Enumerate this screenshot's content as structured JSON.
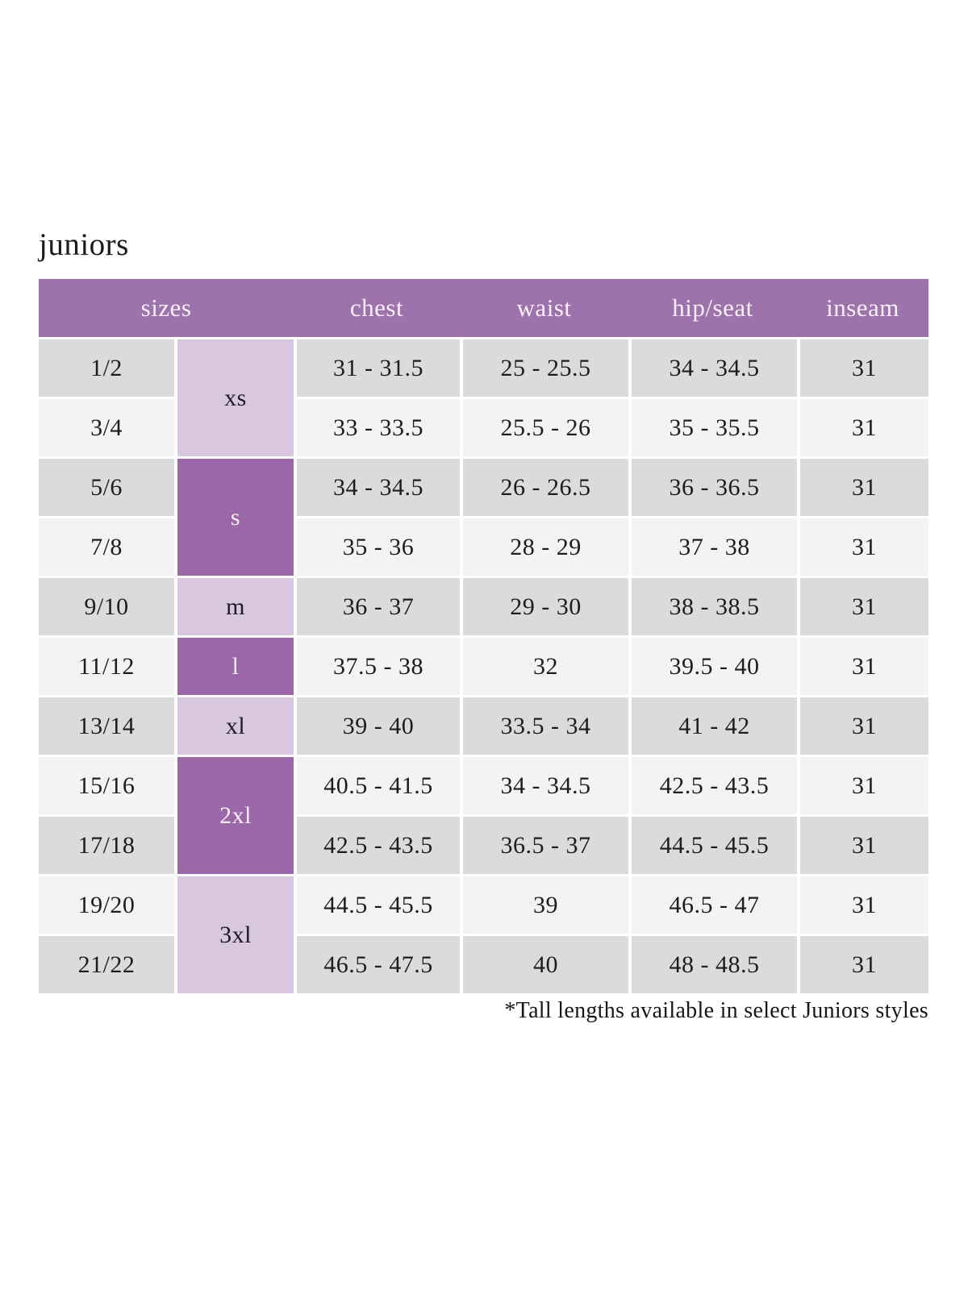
{
  "page": {
    "title": "juniors",
    "footnote": "*Tall lengths available in select Juniors styles"
  },
  "colors": {
    "header_bg": "#9e72ac",
    "dark_size_bg": "#9c67a9",
    "light_size_bg": "#d9c7e0",
    "row_gray": "#dcdbdc",
    "row_light": "#f4f3f4",
    "header_text": "#f7f1f7",
    "body_text": "#1d1d1f"
  },
  "table": {
    "headers": [
      {
        "label": "sizes",
        "colspan": 2
      },
      {
        "label": "chest",
        "colspan": 1
      },
      {
        "label": "waist",
        "colspan": 1
      },
      {
        "label": "hip/seat",
        "colspan": 1
      },
      {
        "label": "inseam",
        "colspan": 1
      }
    ],
    "size_groups": [
      {
        "label": "xs",
        "rows": 2,
        "variant": "light"
      },
      {
        "label": "s",
        "rows": 2,
        "variant": "dark"
      },
      {
        "label": "m",
        "rows": 1,
        "variant": "light"
      },
      {
        "label": "l",
        "rows": 1,
        "variant": "dark"
      },
      {
        "label": "xl",
        "rows": 1,
        "variant": "light"
      },
      {
        "label": "2xl",
        "rows": 2,
        "variant": "dark"
      },
      {
        "label": "3xl",
        "rows": 2,
        "variant": "light"
      }
    ],
    "rows": [
      {
        "size": "1/2",
        "chest": "31 - 31.5",
        "waist": "25 - 25.5",
        "hip_seat": "34 - 34.5",
        "inseam": "31"
      },
      {
        "size": "3/4",
        "chest": "33 - 33.5",
        "waist": "25.5 - 26",
        "hip_seat": "35 - 35.5",
        "inseam": "31"
      },
      {
        "size": "5/6",
        "chest": "34 - 34.5",
        "waist": "26 - 26.5",
        "hip_seat": "36 - 36.5",
        "inseam": "31"
      },
      {
        "size": "7/8",
        "chest": "35 - 36",
        "waist": "28 - 29",
        "hip_seat": "37 - 38",
        "inseam": "31"
      },
      {
        "size": "9/10",
        "chest": "36 - 37",
        "waist": "29 - 30",
        "hip_seat": "38 - 38.5",
        "inseam": "31"
      },
      {
        "size": "11/12",
        "chest": "37.5 - 38",
        "waist": "32",
        "hip_seat": "39.5 - 40",
        "inseam": "31"
      },
      {
        "size": "13/14",
        "chest": "39 - 40",
        "waist": "33.5 - 34",
        "hip_seat": "41 - 42",
        "inseam": "31"
      },
      {
        "size": "15/16",
        "chest": "40.5 - 41.5",
        "waist": "34 - 34.5",
        "hip_seat": "42.5 - 43.5",
        "inseam": "31"
      },
      {
        "size": "17/18",
        "chest": "42.5 - 43.5",
        "waist": "36.5 - 37",
        "hip_seat": "44.5 - 45.5",
        "inseam": "31"
      },
      {
        "size": "19/20",
        "chest": "44.5 - 45.5",
        "waist": "39",
        "hip_seat": "46.5 - 47",
        "inseam": "31"
      },
      {
        "size": "21/22",
        "chest": "46.5 - 47.5",
        "waist": "40",
        "hip_seat": "48 - 48.5",
        "inseam": "31"
      }
    ]
  }
}
